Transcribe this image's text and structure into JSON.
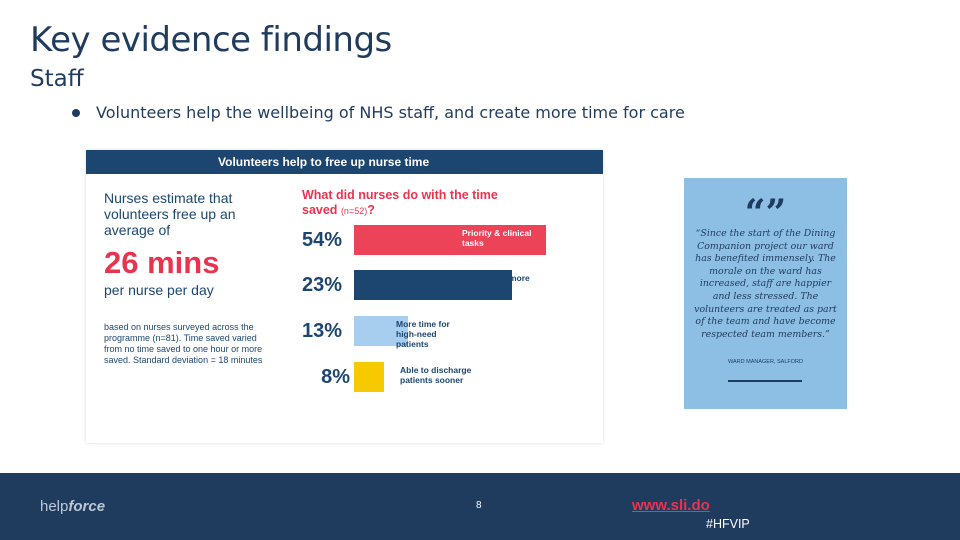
{
  "slide": {
    "title": "Key evidence findings",
    "subtitle": "Staff",
    "bullet": "Volunteers help the wellbeing of NHS staff, and create more time for care"
  },
  "infographic": {
    "header": "Volunteers help to free up nurse time",
    "lead": "Nurses estimate that volunteers free up an average of",
    "big_value": "26 mins",
    "per": "per nurse per day",
    "note": "based on nurses surveyed across the programme (n=81). Time saved varied from no time saved to one hour or more saved. Standard deviation = 18 minutes",
    "question": "What did nurses do with the time saved",
    "question_n": "(n=52)",
    "question_mark": "?"
  },
  "chart_data": {
    "type": "bar",
    "title": "What did nurses do with the time saved (n=52)?",
    "categories": [
      "Priority & clinical tasks",
      "Support more patients",
      "More time for high-need patients",
      "Able to discharge patients sooner"
    ],
    "values": [
      54,
      23,
      13,
      8
    ],
    "value_labels": [
      "54%",
      "23%",
      "13%",
      "8%"
    ],
    "colors": [
      "#ec4359",
      "#1c4670",
      "#a7cdef",
      "#f7ca00"
    ],
    "label_colors": [
      "#ffffff",
      "#1c4670",
      "#1c4670",
      "#1c4670"
    ],
    "xlabel": "",
    "ylabel": "",
    "xlim": [
      0,
      54
    ]
  },
  "quote": {
    "mark": "“”",
    "text": "“Since the start of the Dining Companion project our ward has benefited immensely. The morale on the ward has increased, staff are happier and less stressed. The volunteers are treated as part of the team and have become respected team members.”",
    "attribution": "WARD MANAGER, SALFORD"
  },
  "footer": {
    "logo_a": "help",
    "logo_b": "force",
    "page_number": "8",
    "link": "www.sli.do",
    "hashtag": "#HFVIP"
  },
  "colors": {
    "navy": "#1f3b5e",
    "accent_red": "#e8344e",
    "quote_bg": "#8dbee4"
  }
}
